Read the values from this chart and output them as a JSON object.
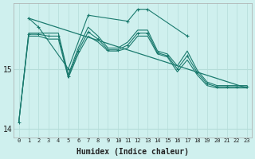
{
  "xlabel": "Humidex (Indice chaleur)",
  "bg_color": "#cff0ee",
  "grid_color": "#b5ddd9",
  "line_color": "#1a7a6e",
  "ylim": [
    13.85,
    16.1
  ],
  "xlim": [
    -0.5,
    23.5
  ],
  "yticks": [
    14,
    15
  ],
  "xticks": [
    0,
    1,
    2,
    3,
    4,
    5,
    6,
    7,
    8,
    9,
    10,
    11,
    12,
    13,
    14,
    15,
    16,
    17,
    18,
    19,
    20,
    21,
    22,
    23
  ],
  "series_min_x": [
    0,
    1,
    2,
    3,
    4,
    5,
    6,
    7,
    8,
    9,
    10,
    11,
    12,
    13,
    14,
    15,
    16,
    17,
    18,
    19,
    20,
    21,
    22,
    23
  ],
  "series_min_y": [
    14.1,
    15.55,
    15.55,
    15.5,
    15.5,
    14.85,
    15.25,
    15.55,
    15.45,
    15.3,
    15.3,
    15.35,
    15.55,
    15.55,
    15.25,
    15.2,
    14.95,
    15.15,
    14.9,
    14.72,
    14.68,
    14.68,
    14.68,
    14.68
  ],
  "series_max_x": [
    0,
    1,
    2,
    3,
    4,
    5,
    6,
    7,
    8,
    9,
    10,
    11,
    12,
    13,
    14,
    15,
    16,
    17,
    18,
    19,
    20,
    21,
    22,
    23
  ],
  "series_max_y": [
    14.1,
    15.6,
    15.6,
    15.6,
    15.6,
    14.9,
    15.35,
    15.7,
    15.55,
    15.35,
    15.35,
    15.45,
    15.65,
    15.65,
    15.3,
    15.25,
    15.05,
    15.3,
    14.98,
    14.78,
    14.72,
    14.72,
    14.72,
    14.72
  ],
  "series_mean_x": [
    0,
    1,
    2,
    3,
    4,
    5,
    6,
    7,
    8,
    9,
    10,
    11,
    12,
    13,
    14,
    15,
    16,
    17,
    18,
    19,
    20,
    21,
    22,
    23
  ],
  "series_mean_y": [
    14.1,
    15.58,
    15.58,
    15.55,
    15.55,
    14.87,
    15.3,
    15.62,
    15.5,
    15.32,
    15.32,
    15.4,
    15.6,
    15.6,
    15.27,
    15.22,
    15.0,
    15.22,
    14.94,
    14.75,
    14.7,
    14.7,
    14.7,
    14.7
  ],
  "series_spiky_x": [
    1,
    2,
    5,
    7,
    11,
    12,
    13,
    17
  ],
  "series_spiky_y": [
    15.85,
    15.7,
    15.0,
    15.9,
    15.8,
    16.0,
    16.0,
    15.55
  ],
  "trendline_x": [
    1,
    23
  ],
  "trendline_y": [
    15.85,
    14.68
  ]
}
